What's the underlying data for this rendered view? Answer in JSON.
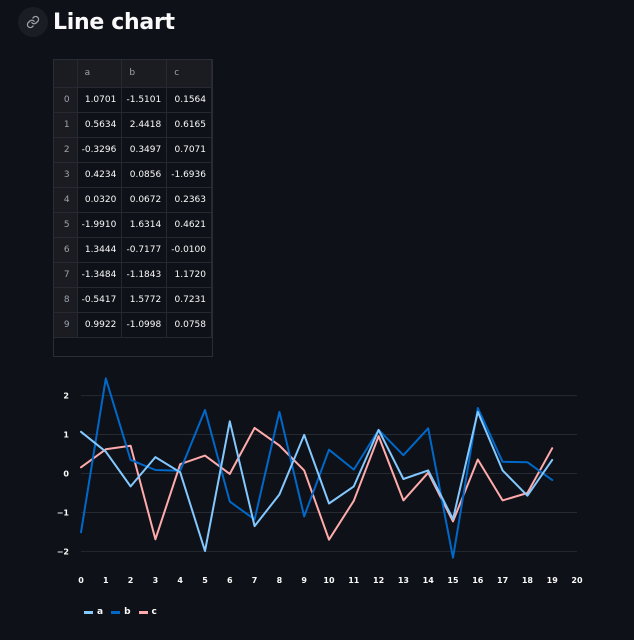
{
  "page": {
    "title": "Line chart",
    "link_icon": "link-icon"
  },
  "dataframe": {
    "columns": [
      "",
      "a",
      "b",
      "c"
    ],
    "rows": [
      {
        "index": "0",
        "a": "1.0701",
        "b": "-1.5101",
        "c": "0.1564"
      },
      {
        "index": "1",
        "a": "0.5634",
        "b": "2.4418",
        "c": "0.6165"
      },
      {
        "index": "2",
        "a": "-0.3296",
        "b": "0.3497",
        "c": "0.7071"
      },
      {
        "index": "3",
        "a": "0.4234",
        "b": "0.0856",
        "c": "-1.6936"
      },
      {
        "index": "4",
        "a": "0.0320",
        "b": "0.0672",
        "c": "0.2363"
      },
      {
        "index": "5",
        "a": "-1.9910",
        "b": "1.6314",
        "c": "0.4621"
      },
      {
        "index": "6",
        "a": "1.3444",
        "b": "-0.7177",
        "c": "-0.0100"
      },
      {
        "index": "7",
        "a": "-1.3484",
        "b": "-1.1843",
        "c": "1.1720"
      },
      {
        "index": "8",
        "a": "-0.5417",
        "b": "1.5772",
        "c": "0.7231"
      },
      {
        "index": "9",
        "a": "0.9922",
        "b": "-1.0998",
        "c": "0.0758"
      }
    ]
  },
  "chart_data": {
    "type": "line",
    "x": [
      0,
      1,
      2,
      3,
      4,
      5,
      6,
      7,
      8,
      9,
      10,
      11,
      12,
      13,
      14,
      15,
      16,
      17,
      18,
      19
    ],
    "xlim": [
      0,
      20
    ],
    "ylim": [
      -2.4,
      2.4
    ],
    "xticks": [
      "0",
      "1",
      "2",
      "3",
      "4",
      "5",
      "6",
      "7",
      "8",
      "9",
      "10",
      "11",
      "12",
      "13",
      "14",
      "15",
      "16",
      "17",
      "18",
      "19",
      "20"
    ],
    "yticks": [
      "2",
      "1",
      "0",
      "−1",
      "−2"
    ],
    "ytick_values": [
      2,
      1,
      0,
      -1,
      -2
    ],
    "grid": true,
    "legend_position": "bottom-left",
    "series": [
      {
        "name": "a",
        "color": "#83c9ff",
        "values": [
          1.07,
          0.56,
          -0.33,
          0.42,
          0.03,
          -1.99,
          1.34,
          -1.35,
          -0.54,
          0.99,
          -0.77,
          -0.33,
          1.12,
          -0.14,
          0.08,
          -1.17,
          1.58,
          0.08,
          -0.57,
          0.35
        ]
      },
      {
        "name": "b",
        "color": "#0068c9",
        "values": [
          -1.51,
          2.44,
          0.35,
          0.09,
          0.07,
          1.63,
          -0.72,
          -1.18,
          1.58,
          -1.1,
          0.61,
          0.1,
          1.12,
          0.47,
          1.16,
          -2.16,
          1.68,
          0.3,
          0.29,
          -0.17
        ]
      },
      {
        "name": "c",
        "color": "#ffabab",
        "values": [
          0.16,
          0.62,
          0.71,
          -1.69,
          0.24,
          0.46,
          -0.01,
          1.17,
          0.72,
          0.08,
          -1.7,
          -0.7,
          0.96,
          -0.69,
          0.02,
          -1.23,
          0.36,
          -0.69,
          -0.5,
          0.65
        ]
      }
    ]
  }
}
